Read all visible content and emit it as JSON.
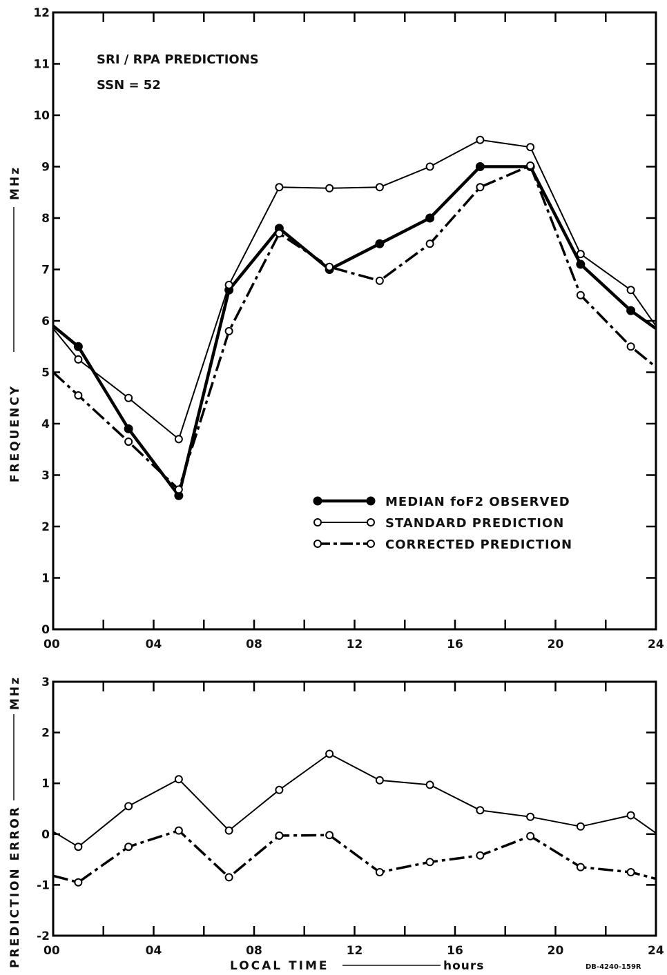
{
  "chart_data": [
    {
      "type": "line",
      "annotations": [
        "SRI / RPA PREDICTIONS",
        "SSN = 52"
      ],
      "ylabel": "FREQUENCY",
      "yunit": "MHz",
      "xlim": [
        0,
        24
      ],
      "ylim": [
        0,
        12
      ],
      "xticks": [
        0,
        4,
        8,
        12,
        16,
        20,
        24
      ],
      "xtick_labels": [
        "00",
        "04",
        "08",
        "12",
        "16",
        "20",
        "24"
      ],
      "yticks": [
        0,
        1,
        2,
        3,
        4,
        5,
        6,
        7,
        8,
        9,
        10,
        11,
        12
      ],
      "ytick_labels": [
        "0",
        "1",
        "2",
        "3",
        "4",
        "5",
        "6",
        "7",
        "8",
        "9",
        "10",
        "11",
        "12"
      ],
      "legend_position": "lower-right",
      "series": [
        {
          "name": "MEDIAN foF2 OBSERVED",
          "style": "thick-solid-filled",
          "x": [
            0,
            1,
            3,
            5,
            7,
            9,
            11,
            13,
            15,
            17,
            19,
            21,
            23,
            24
          ],
          "y": [
            5.9,
            5.5,
            3.9,
            2.6,
            6.6,
            7.8,
            7.0,
            7.5,
            8.0,
            9.0,
            9.0,
            7.1,
            6.2,
            5.85
          ]
        },
        {
          "name": "STANDARD PREDICTION",
          "style": "thin-solid-open",
          "x": [
            0,
            1,
            3,
            5,
            7,
            9,
            11,
            13,
            15,
            17,
            19,
            21,
            23,
            24
          ],
          "y": [
            5.85,
            5.25,
            4.5,
            3.7,
            6.7,
            8.6,
            8.58,
            8.6,
            9.0,
            9.52,
            9.38,
            7.3,
            6.6,
            5.9
          ]
        },
        {
          "name": "CORRECTED PREDICTION",
          "style": "dashed-open",
          "x": [
            0,
            1,
            3,
            5,
            7,
            9,
            11,
            13,
            15,
            17,
            19,
            21,
            23,
            24
          ],
          "y": [
            5.0,
            4.55,
            3.65,
            2.72,
            5.8,
            7.7,
            7.05,
            6.78,
            7.5,
            8.6,
            9.02,
            6.5,
            5.5,
            5.1
          ]
        }
      ]
    },
    {
      "type": "line",
      "ylabel": "PREDICTION ERROR",
      "yunit": "MHz",
      "xlabel": "LOCAL TIME",
      "xunit": "hours",
      "xlim": [
        0,
        24
      ],
      "ylim": [
        -2,
        3
      ],
      "xticks": [
        0,
        4,
        8,
        12,
        16,
        20,
        24
      ],
      "xtick_labels": [
        "00",
        "04",
        "08",
        "12",
        "16",
        "20",
        "24"
      ],
      "yticks": [
        -2,
        -1,
        0,
        1,
        2,
        3
      ],
      "ytick_labels": [
        "-2",
        "-1",
        "0",
        "1",
        "2",
        "3"
      ],
      "series": [
        {
          "style": "thin-solid-open",
          "x": [
            0,
            1,
            3,
            5,
            7,
            9,
            11,
            13,
            15,
            17,
            19,
            21,
            23,
            24
          ],
          "y": [
            0.05,
            -0.25,
            0.55,
            1.08,
            0.07,
            0.87,
            1.58,
            1.06,
            0.97,
            0.47,
            0.34,
            0.15,
            0.37,
            0.02
          ]
        },
        {
          "style": "dashed-open",
          "x": [
            0,
            1,
            3,
            5,
            7,
            9,
            11,
            13,
            15,
            17,
            19,
            21,
            23,
            24
          ],
          "y": [
            -0.82,
            -0.95,
            -0.25,
            0.07,
            -0.85,
            -0.03,
            -0.02,
            -0.75,
            -0.55,
            -0.42,
            -0.04,
            -0.65,
            -0.75,
            -0.88
          ]
        }
      ]
    }
  ],
  "document_id": "DB-4240-159R"
}
